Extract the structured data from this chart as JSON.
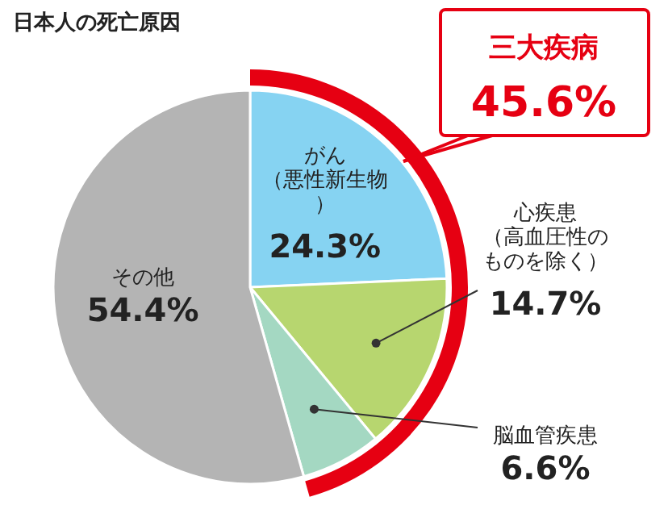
{
  "chart_data": {
    "type": "pie",
    "title": "日本人の死亡原因",
    "categories": [
      "がん（悪性新生物）",
      "心疾患（高血圧性のものを除く）",
      "脳血管疾患",
      "その他"
    ],
    "values": [
      24.3,
      14.7,
      6.6,
      54.4
    ],
    "colors": [
      "#86d3f2",
      "#b7d66f",
      "#a4d8c2",
      "#b4b4b4"
    ],
    "value_labels": [
      "24.3%",
      "14.7%",
      "6.6%",
      "54.4%"
    ],
    "annotations": [
      "三大疾病",
      "45.6%"
    ]
  }
}
